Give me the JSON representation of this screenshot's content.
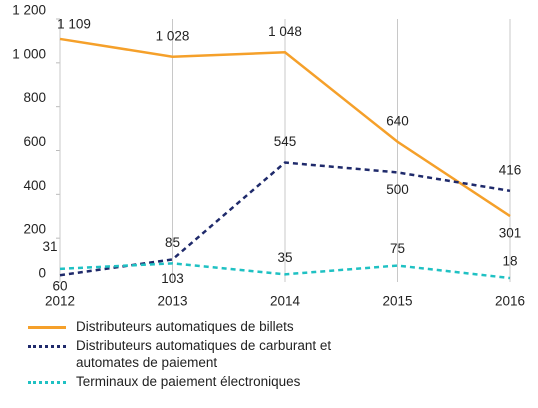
{
  "chart_data": {
    "type": "line",
    "categories": [
      "2012",
      "2013",
      "2014",
      "2015",
      "2016"
    ],
    "series": [
      {
        "name": "Distributeurs automatiques de billets",
        "color": "#f5a02a",
        "dash": "solid",
        "values": [
          1109,
          1028,
          1048,
          640,
          301
        ],
        "value_labels": [
          "1 109",
          "1 028",
          "1 048",
          "640",
          "301"
        ]
      },
      {
        "name": "Distributeurs automatiques de carburant et automates de paiement",
        "color": "#1f2a6b",
        "dash": "dotted",
        "values": [
          31,
          103,
          545,
          500,
          416
        ]
      },
      {
        "name": "Terminaux de paiement électroniques",
        "color": "#1fc1c3",
        "dash": "dotted",
        "values": [
          60,
          85,
          35,
          75,
          18
        ]
      }
    ],
    "ylim": [
      0,
      1200
    ],
    "yticks": [
      0,
      200,
      400,
      600,
      800,
      {
        "value": 1000,
        "label": "1 000"
      },
      {
        "value": 1200,
        "label": "1 200"
      }
    ],
    "grid": "x"
  }
}
